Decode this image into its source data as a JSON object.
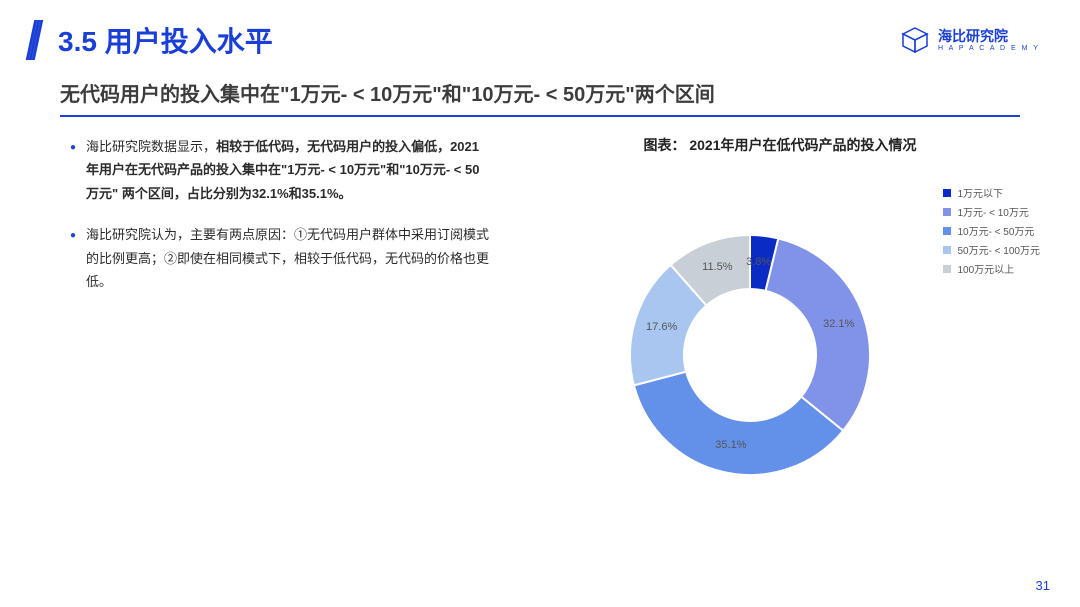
{
  "header": {
    "section_title": "3.5 用户投入水平",
    "logo_cn": "海比研究院",
    "logo_en": "H A P  A C A D E M Y"
  },
  "subtitle": "无代码用户的投入集中在\"1万元- < 10万元\"和\"10万元- < 50万元\"两个区间",
  "bullets": [
    {
      "pre": "海比研究院数据显示，",
      "bold": "相较于低代码，无代码用户的投入偏低，2021年用户在无代码产品的投入集中在\"1万元- < 10万元\"和\"10万元- < 50万元\" 两个区间，占比分别为32.1%和35.1%。",
      "post": ""
    },
    {
      "pre": "海比研究院认为，主要有两点原因：①无代码用户群体中采用订阅模式的比例更高；②即使在相同模式下，相较于低代码，无代码的价格也更低。",
      "bold": "",
      "post": ""
    }
  ],
  "chart": {
    "title": "图表： 2021年用户在低代码产品的投入情况",
    "type": "donut",
    "inner_radius_pct": 55,
    "start_angle_deg": 0,
    "background_color": "#ffffff",
    "label_fontsize": 11,
    "label_color": "#555555",
    "legend_fontsize": 10,
    "series": [
      {
        "label": "1万元以下",
        "value": 3.8,
        "display": "3.8%",
        "color": "#0b2cc4"
      },
      {
        "label": "1万元- < 10万元",
        "value": 32.1,
        "display": "32.1%",
        "color": "#8193e8"
      },
      {
        "label": "10万元- < 50万元",
        "value": 35.1,
        "display": "35.1%",
        "color": "#6390e8"
      },
      {
        "label": "50万元- < 100万元",
        "value": 17.6,
        "display": "17.6%",
        "color": "#a8c6f0"
      },
      {
        "label": "100万元以上",
        "value": 11.5,
        "display": "11.5%",
        "color": "#c9cfd6"
      }
    ]
  },
  "page_number": "31"
}
